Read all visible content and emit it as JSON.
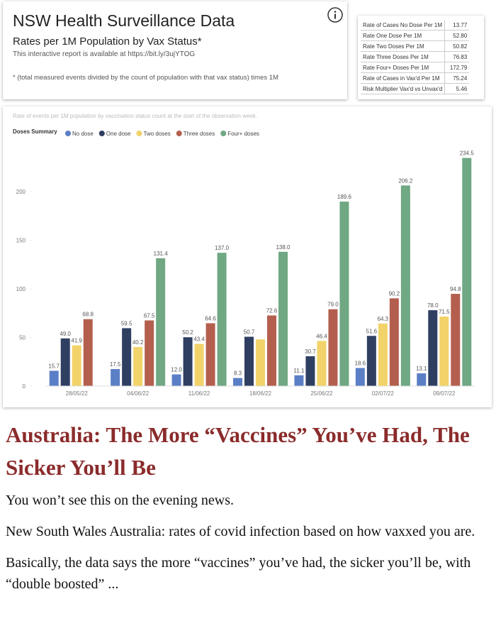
{
  "header": {
    "title": "NSW Health Surveillance Data",
    "subtitle": "Rates per 1M Population by Vax Status*",
    "link_text": "This interactive report is available at https://bit.ly/3ujYTOG",
    "footnote": "* (total measured events divided by the count of population with that vax status) times 1M"
  },
  "table": {
    "rows": [
      [
        "Rate of Cases No Dose Per 1M",
        "13.77"
      ],
      [
        "Rate One Dose Per 1M",
        "52.80"
      ],
      [
        "Rate Two Doses Per 1M",
        "50.82"
      ],
      [
        "Rate Three Doses Per 1M",
        "76.83"
      ],
      [
        "Rate Four+ Doses Per 1M",
        "172.79"
      ],
      [
        "Rate of Cases in Vax'd Per 1M",
        "75.24"
      ],
      [
        "Risk Multiplier Vax'd vs Unvax'd",
        "5.46"
      ]
    ]
  },
  "chart_data": {
    "type": "bar",
    "subtitle": "Rate of events per 1M population by vaccination status count at the start of the observation week.",
    "legend_title": "Doses Summary",
    "categories": [
      "28/05/22",
      "04/06/22",
      "11/06/22",
      "18/06/22",
      "25/06/22",
      "02/07/22",
      "09/07/22"
    ],
    "series": [
      {
        "name": "No dose",
        "color": "#5b7fc6",
        "values": [
          15.7,
          17.5,
          12.0,
          8.3,
          11.1,
          18.6,
          13.1
        ],
        "value_labels": [
          "15.7",
          "17.5",
          "12.0",
          "8.3",
          "11.1",
          "18.6",
          "13.1"
        ]
      },
      {
        "name": "One dose",
        "color": "#2f3f62",
        "values": [
          49.0,
          59.5,
          50.2,
          50.7,
          30.7,
          51.6,
          78.0
        ],
        "value_labels": [
          "49.0",
          "59.5",
          "50.2",
          "50.7",
          "30.7",
          "51.6",
          "78.0"
        ]
      },
      {
        "name": "Two doses",
        "color": "#f2d36a",
        "values": [
          41.9,
          40.2,
          43.4,
          48,
          46.4,
          64.3,
          71.5
        ],
        "value_labels": [
          "41.9",
          "40.2",
          "43.4",
          null,
          "46.4",
          "64.3",
          "71.5"
        ]
      },
      {
        "name": "Three doses",
        "color": "#b45f4e",
        "values": [
          68.8,
          67.5,
          64.6,
          72.6,
          79.0,
          90.2,
          94.8
        ],
        "value_labels": [
          "68.8",
          "67.5",
          "64.6",
          "72.6",
          "79.0",
          "90.2",
          "94.8"
        ]
      },
      {
        "name": "Four+ doses",
        "color": "#6fa883",
        "values": [
          null,
          131.4,
          137.0,
          138.0,
          189.6,
          206.2,
          234.5
        ],
        "value_labels": [
          null,
          "131.4",
          "137.0",
          "138.0",
          "189.6",
          "206.2",
          "234.5"
        ]
      }
    ],
    "ylim": [
      0,
      240
    ],
    "yticks": [
      0,
      50,
      100,
      150,
      200
    ],
    "grid": false
  },
  "article": {
    "title": "Australia: The More “Vaccines” You’ve Had, The Sicker You’ll Be",
    "paragraphs": [
      "You won’t see this on the evening news.",
      "New South Wales Australia: rates of covid infection based on how vaxxed you are.",
      "Basically, the data says the more “vaccines” you’ve had, the sicker you’ll be, with “double boosted” ..."
    ]
  }
}
